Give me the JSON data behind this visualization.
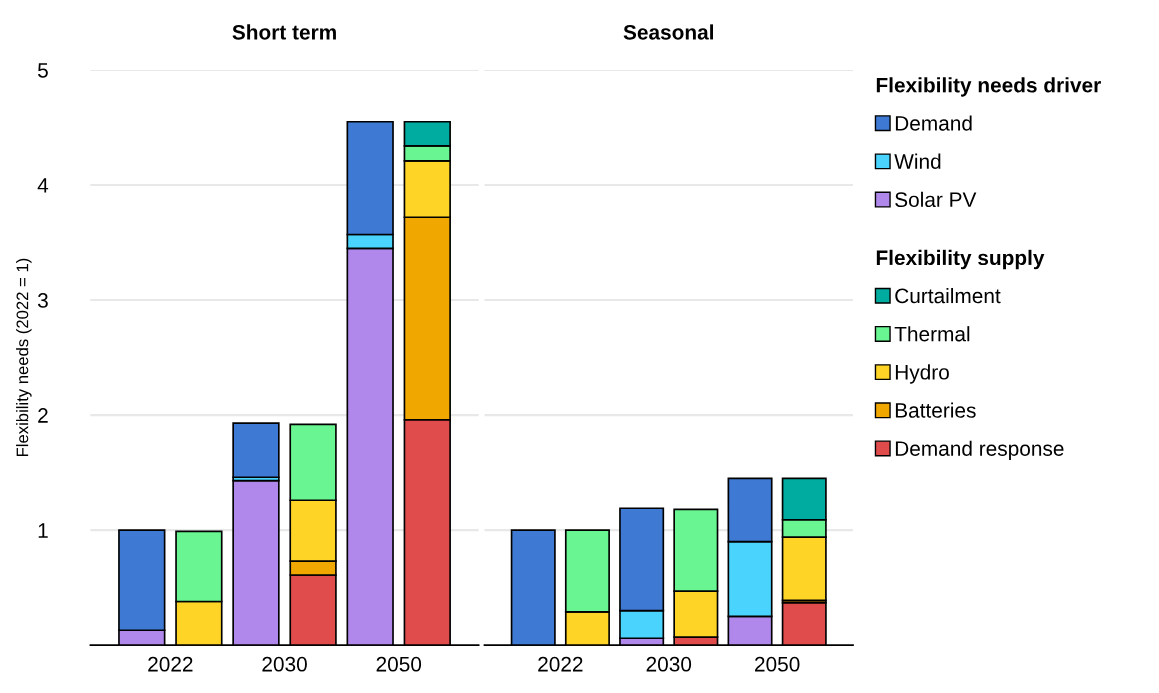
{
  "chart_data": [
    {
      "type": "bar",
      "title": "Short term",
      "ylabel": "Flexibility needs (2022 = 1)",
      "stacked": true,
      "categories": [
        "2022",
        null,
        "2030",
        null,
        "2050",
        null
      ],
      "ylim": [
        0,
        5
      ],
      "yticks": [
        1,
        2,
        3,
        4,
        5
      ],
      "grid": "y",
      "series": [
        {
          "color": "#b088eb",
          "values": [
            0.13,
            null,
            1.43,
            null,
            3.45,
            null
          ]
        },
        {
          "color": "#4ad3fd",
          "values": [
            null,
            null,
            0.03,
            null,
            0.12,
            null
          ]
        },
        {
          "color": "#3e7ad3",
          "values": [
            0.87,
            null,
            0.47,
            null,
            0.98,
            null
          ]
        },
        {
          "color": "#e04b4b",
          "values": [
            null,
            null,
            null,
            0.61,
            null,
            1.96
          ]
        },
        {
          "color": "#f0a800",
          "values": [
            null,
            null,
            null,
            0.12,
            null,
            1.76
          ]
        },
        {
          "color": "#fed426",
          "values": [
            null,
            0.38,
            null,
            0.53,
            null,
            0.49
          ]
        },
        {
          "color": "#69f591",
          "values": [
            null,
            0.61,
            null,
            0.66,
            null,
            0.13
          ]
        },
        {
          "color": "#00aca0",
          "values": [
            null,
            null,
            null,
            null,
            null,
            0.21
          ]
        }
      ]
    },
    {
      "type": "bar",
      "title": "Seasonal",
      "stacked": true,
      "categories": [
        "2022",
        null,
        "2030",
        null,
        "2050",
        null
      ],
      "ylim": [
        0,
        5
      ],
      "yticks": [
        1,
        2,
        3,
        4,
        5
      ],
      "grid": "y",
      "legend": "right",
      "tick_labels": "x",
      "legend_title": "Flexibility needs driver",
      "annotations": [
        "Flexibility supply"
      ],
      "series": [
        {
          "name": "Solar PV",
          "color": "#b088eb",
          "values": [
            null,
            null,
            0.06,
            null,
            0.25,
            null
          ]
        },
        {
          "name": "Wind",
          "color": "#4ad3fd",
          "values": [
            null,
            null,
            0.24,
            null,
            0.65,
            null
          ]
        },
        {
          "name": "Demand",
          "color": "#3e7ad3",
          "values": [
            1.0,
            null,
            0.89,
            null,
            0.55,
            null
          ]
        },
        {
          "name": "Demand response",
          "color": "#e04b4b",
          "values": [
            null,
            null,
            null,
            0.07,
            null,
            0.37
          ]
        },
        {
          "name": "Batteries",
          "color": "#f0a800",
          "values": [
            null,
            null,
            null,
            null,
            null,
            0.02
          ]
        },
        {
          "name": "Hydro",
          "color": "#fed426",
          "values": [
            null,
            0.29,
            null,
            0.4,
            null,
            0.55
          ]
        },
        {
          "name": "Thermal",
          "color": "#69f591",
          "values": [
            null,
            0.71,
            null,
            0.71,
            null,
            0.15
          ]
        },
        {
          "name": "Curtailment",
          "color": "#00aca0",
          "values": [
            null,
            null,
            null,
            null,
            null,
            0.36
          ]
        }
      ]
    }
  ]
}
